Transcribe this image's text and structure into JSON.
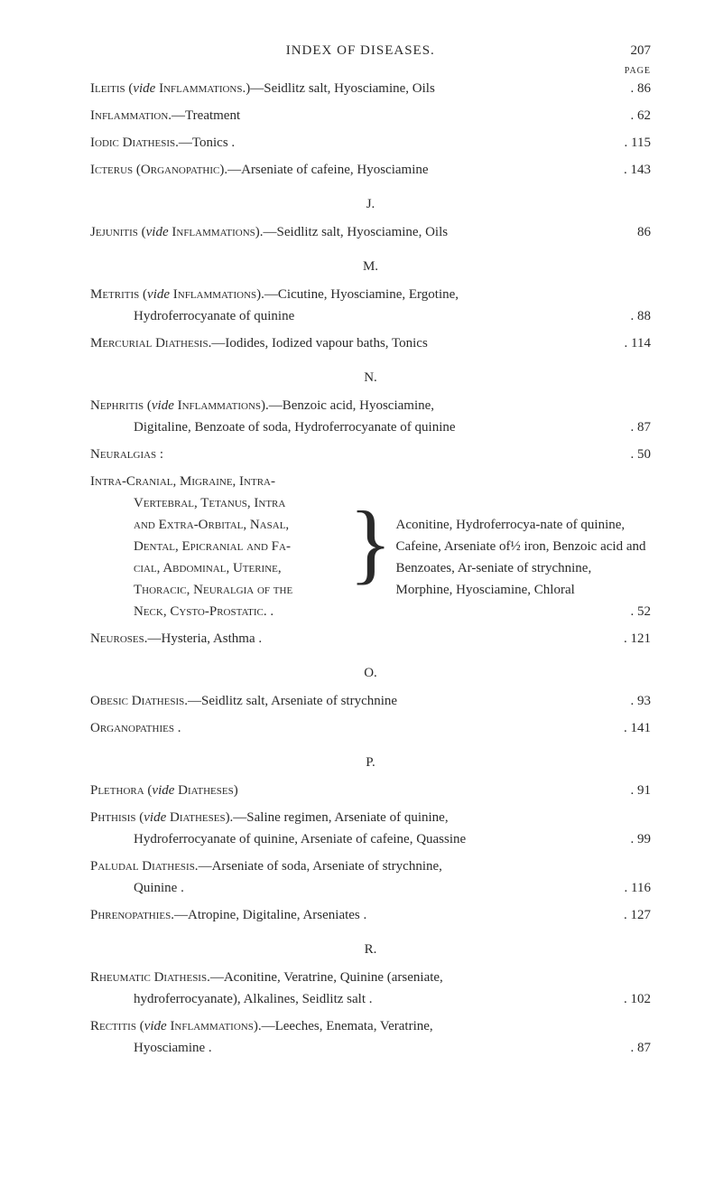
{
  "header": {
    "title": "INDEX OF DISEASES.",
    "page_number": "207",
    "page_label": "PAGE"
  },
  "sections": {
    "initial": {
      "entries": [
        {
          "text_html": "<span class='small-caps'>Ileitis</span> (<span class='italic'>vide</span> <span class='small-caps'>Inflammations</span>.)—Seidlitz salt, Hyosciamine, Oils",
          "page": ". 86"
        },
        {
          "text_html": "<span class='small-caps'>Inflammation.</span>—Treatment",
          "page": ". 62"
        },
        {
          "text_html": "<span class='small-caps'>Iodic Diathesis.</span>—Tonics .",
          "page": ". 115"
        },
        {
          "text_html": "<span class='small-caps'>Icterus (Organopathic).</span>—Arseniate of cafeine, Hyosciamine",
          "page": ". 143"
        }
      ]
    },
    "J": {
      "letter": "J.",
      "entries": [
        {
          "text_html": "<span class='small-caps'>Jejunitis</span> (<span class='italic'>vide</span> <span class='small-caps'>Inflammations</span>).—Seidlitz salt, Hyosciamine, Oils",
          "page": "86"
        }
      ]
    },
    "M": {
      "letter": "M.",
      "entries": [
        {
          "lines": [
            "<span class='small-caps'>Metritis</span> (<span class='italic'>vide</span> <span class='small-caps'>Inflammations</span>).—Cicutine, Hyosciamine, Ergotine,"
          ],
          "continuation": "Hydroferrocyanate of quinine",
          "page": ". 88"
        },
        {
          "text_html": "<span class='small-caps'>Mercurial Diathesis.</span>—Iodides, Iodized vapour baths, Tonics",
          "page": ". 114"
        }
      ]
    },
    "N": {
      "letter": "N.",
      "entries": [
        {
          "lines": [
            "<span class='small-caps'>Nephritis</span> (<span class='italic'>vide</span> <span class='small-caps'>Inflammations</span>).—Benzoic acid, Hyosciamine,"
          ],
          "continuation": "Digitaline, Benzoate of soda, Hydroferrocyanate of quinine",
          "page": ". 87"
        },
        {
          "text_html": "<span class='small-caps'>Neuralgias</span> :",
          "page": ". 50"
        }
      ],
      "grouped": {
        "left_lines": [
          "<span class='small-caps'>Intra-Cranial, Migraine, Intra-</span>",
          "<span class='small-caps'>Vertebral, Tetanus, Intra</span>",
          "<span class='small-caps'>and Extra-Orbital, Nasal,</span>",
          "<span class='small-caps'>Dental, Epicranial and Fa-</span>",
          "<span class='small-caps'>cial, Abdominal, Uterine,</span>",
          "<span class='small-caps'>Thoracic, Neuralgia of the</span>",
          "<span class='small-caps'>Neck, Cysto-Prostatic.</span> ."
        ],
        "right_text": "Aconitine, Hydroferrocya-nate of quinine, Cafeine, Arseniate of½ iron, Benzoic acid and Benzoates, Ar-seniate of strychnine, Morphine, Hyosciamine, Chloral",
        "page": ". 52"
      },
      "post_entries": [
        {
          "text_html": "<span class='small-caps'>Neuroses.</span>—Hysteria, Asthma .",
          "page": ". 121"
        }
      ]
    },
    "O": {
      "letter": "O.",
      "entries": [
        {
          "text_html": "<span class='small-caps'>Obesic Diathesis.</span>—Seidlitz salt, Arseniate of strychnine",
          "page": ". 93"
        },
        {
          "text_html": "<span class='small-caps'>Organopathies</span> .",
          "page": ". 141"
        }
      ]
    },
    "P": {
      "letter": "P.",
      "entries": [
        {
          "text_html": "<span class='small-caps'>Plethora</span> (<span class='italic'>vide</span> <span class='small-caps'>Diatheses</span>)",
          "page": ". 91"
        },
        {
          "lines": [
            "<span class='small-caps'>Phthisis</span> (<span class='italic'>vide</span> <span class='small-caps'>Diatheses</span>).—Saline regimen, Arseniate of quinine,"
          ],
          "continuation": "Hydroferrocyanate of quinine, Arseniate of cafeine, Quassine",
          "page": ". 99"
        },
        {
          "lines": [
            "<span class='small-caps'>Paludal Diathesis.</span>—Arseniate of soda, Arseniate of strychnine,"
          ],
          "continuation": "Quinine .",
          "page": ". 116"
        },
        {
          "text_html": "<span class='small-caps'>Phrenopathies.</span>—Atropine, Digitaline, Arseniates .",
          "page": ". 127"
        }
      ]
    },
    "R": {
      "letter": "R.",
      "entries": [
        {
          "lines": [
            "<span class='small-caps'>Rheumatic Diathesis.</span>—Aconitine, Veratrine, Quinine (arseniate,"
          ],
          "continuation": "hydroferrocyanate), Alkalines, Seidlitz salt .",
          "page": ". 102"
        },
        {
          "lines": [
            "<span class='small-caps'>Rectitis</span> (<span class='italic'>vide</span> <span class='small-caps'>Inflammations</span>).—Leeches, Enemata, Veratrine,"
          ],
          "continuation": "Hyosciamine .",
          "page": ". 87"
        }
      ]
    }
  }
}
